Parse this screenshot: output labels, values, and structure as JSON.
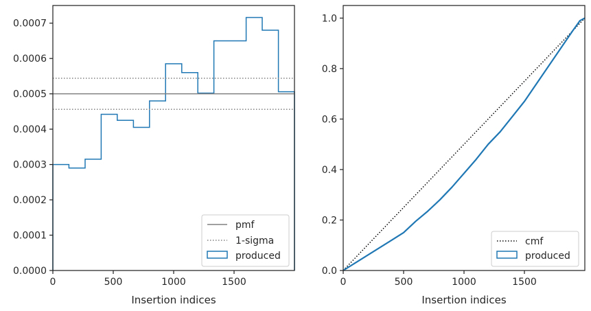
{
  "colors": {
    "produced": "#1f77b4",
    "pmf": "#808080",
    "sigma": "#808080",
    "cmf": "#000000",
    "axes": "#262626",
    "legend_border": "#cccccc"
  },
  "chart_data": [
    {
      "type": "step",
      "xlabel": "Insertion indices",
      "ylabel": "",
      "xlim": [
        0,
        2000
      ],
      "ylim": [
        0,
        0.00075
      ],
      "xticks": [
        0,
        500,
        1000,
        1500
      ],
      "xtick_labels": [
        "0",
        "500",
        "1000",
        "1500"
      ],
      "yticks": [
        0,
        0.0001,
        0.0002,
        0.0003,
        0.0004,
        0.0005,
        0.0006,
        0.0007
      ],
      "ytick_labels": [
        "0.0000",
        "0.0001",
        "0.0002",
        "0.0003",
        "0.0004",
        "0.0005",
        "0.0006",
        "0.0007"
      ],
      "grid": false,
      "legend": "lower-right",
      "bin_edges": [
        0,
        133,
        267,
        400,
        533,
        667,
        800,
        933,
        1067,
        1200,
        1333,
        1467,
        1600,
        1733,
        1867,
        2000
      ],
      "series": [
        {
          "name": "produced",
          "style": "step-histogram",
          "values": [
            0.0003,
            0.00029,
            0.000315,
            0.000442,
            0.000425,
            0.000405,
            0.00048,
            0.000585,
            0.00056,
            0.000502,
            0.00065,
            0.00065,
            0.000716,
            0.00068,
            0.000506
          ]
        },
        {
          "name": "pmf",
          "style": "hline",
          "value": 0.0005
        },
        {
          "name": "1-sigma",
          "style": "hline-dotted",
          "values": [
            0.000544,
            0.000456
          ]
        }
      ],
      "legend_entries": [
        "pmf",
        "1-sigma",
        "produced"
      ]
    },
    {
      "type": "line",
      "xlabel": "Insertion indices",
      "ylabel": "",
      "xlim": [
        0,
        2000
      ],
      "ylim": [
        0,
        1.05
      ],
      "xticks": [
        0,
        500,
        1000,
        1500
      ],
      "xtick_labels": [
        "0",
        "500",
        "1000",
        "1500"
      ],
      "yticks": [
        0,
        0.2,
        0.4,
        0.6,
        0.8,
        1.0
      ],
      "ytick_labels": [
        "0.0",
        "0.2",
        "0.4",
        "0.6",
        "0.8",
        "1.0"
      ],
      "grid": false,
      "legend": "lower-right",
      "series": [
        {
          "name": "cmf",
          "style": "dotted",
          "x": [
            0,
            2000
          ],
          "y": [
            0,
            1.0
          ]
        },
        {
          "name": "produced",
          "style": "solid",
          "x": [
            0,
            100,
            200,
            300,
            400,
            500,
            600,
            700,
            800,
            900,
            1000,
            1100,
            1200,
            1300,
            1400,
            1500,
            1600,
            1700,
            1800,
            1900,
            1960,
            2000
          ],
          "y": [
            0,
            0.03,
            0.06,
            0.09,
            0.12,
            0.15,
            0.195,
            0.235,
            0.28,
            0.33,
            0.385,
            0.44,
            0.5,
            0.55,
            0.61,
            0.67,
            0.74,
            0.81,
            0.88,
            0.95,
            0.99,
            1.0
          ]
        }
      ],
      "legend_entries": [
        "cmf",
        "produced"
      ]
    }
  ]
}
